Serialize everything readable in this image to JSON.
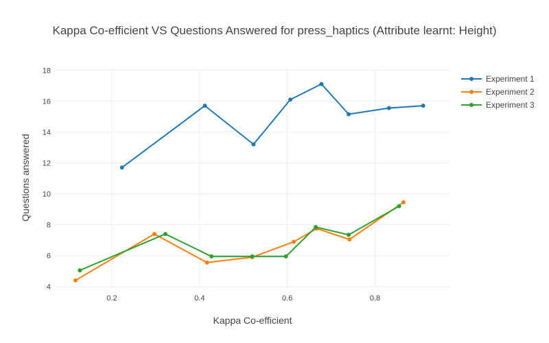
{
  "chart_data": {
    "type": "line",
    "title": "Kappa Co-efficient VS Questions Answered for press_haptics (Attribute learnt: Height)",
    "xlabel": "Kappa Co-efficient",
    "ylabel": "Questions answered",
    "xlim": [
      0.07,
      0.97
    ],
    "ylim": [
      3.9,
      18.1
    ],
    "xticks": [
      0.2,
      0.4,
      0.6,
      0.8
    ],
    "xtick_labels": [
      "0.2",
      "0.4",
      "0.6",
      "0.8"
    ],
    "yticks": [
      4,
      6,
      8,
      10,
      12,
      14,
      16,
      18
    ],
    "ytick_labels": [
      "4",
      "6",
      "8",
      "10",
      "12",
      "14",
      "16",
      "18"
    ],
    "grid": true,
    "legend_position": "top-right",
    "series": [
      {
        "name": "Experiment 1",
        "color": "#1f77b4",
        "x": [
          0.223,
          0.412,
          0.523,
          0.607,
          0.678,
          0.74,
          0.832,
          0.91
        ],
        "y": [
          11.7,
          15.7,
          13.2,
          16.1,
          17.1,
          15.15,
          15.55,
          15.7
        ]
      },
      {
        "name": "Experiment 2",
        "color": "#ff7f0e",
        "x": [
          0.117,
          0.297,
          0.417,
          0.52,
          0.615,
          0.667,
          0.742,
          0.865
        ],
        "y": [
          4.4,
          7.4,
          5.55,
          5.9,
          6.9,
          7.75,
          7.05,
          9.45
        ]
      },
      {
        "name": "Experiment 3",
        "color": "#2ca02c",
        "x": [
          0.127,
          0.322,
          0.427,
          0.52,
          0.597,
          0.665,
          0.74,
          0.855
        ],
        "y": [
          5.05,
          7.4,
          5.95,
          5.95,
          5.95,
          7.85,
          7.35,
          9.2
        ]
      }
    ]
  }
}
